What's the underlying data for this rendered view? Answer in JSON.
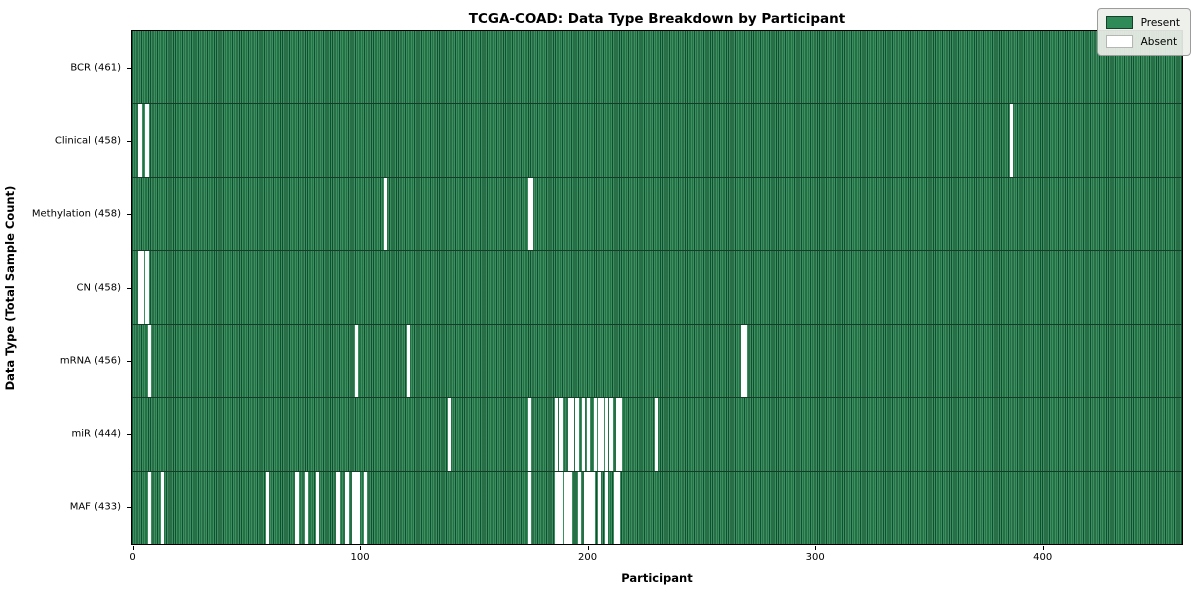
{
  "chart_data": {
    "type": "heatmap",
    "title": "TCGA-COAD: Data Type Breakdown by Participant",
    "xlabel": "Participant",
    "ylabel": "Data Type (Total Sample Count)",
    "x_ticks": [
      0,
      100,
      200,
      300,
      400
    ],
    "x_max": 461,
    "total_participants": 461,
    "grid": false,
    "legend_position": "upper right",
    "legend": [
      {
        "label": "Present",
        "color": "#2e8b57"
      },
      {
        "label": "Absent",
        "color": "#ffffff"
      }
    ],
    "colors": {
      "present": "#2e8b57",
      "present_edge": "#17402a",
      "absent": "#ffffff",
      "row_divider": "#143c26",
      "legend_bg": "#ebefe9"
    },
    "rows": [
      {
        "label": "BCR (461)",
        "data_type": "BCR",
        "count": 461,
        "absent": []
      },
      {
        "label": "Clinical (458)",
        "data_type": "Clinical",
        "count": 458,
        "absent": [
          3,
          6,
          386
        ]
      },
      {
        "label": "Methylation (458)",
        "data_type": "Methylation",
        "count": 458,
        "absent": [
          111,
          174,
          175
        ]
      },
      {
        "label": "CN (458)",
        "data_type": "CN",
        "count": 458,
        "absent": [
          3,
          4,
          6
        ]
      },
      {
        "label": "mRNA (456)",
        "data_type": "mRNA",
        "count": 456,
        "absent": [
          7,
          98,
          121,
          268,
          269
        ]
      },
      {
        "label": "miR (444)",
        "data_type": "miR",
        "count": 444,
        "absent": [
          139,
          174,
          186,
          188,
          192,
          193,
          195,
          198,
          200,
          203,
          205,
          206,
          208,
          210,
          213,
          214,
          230
        ]
      },
      {
        "label": "MAF (433)",
        "data_type": "MAF",
        "count": 433,
        "absent": [
          7,
          13,
          59,
          72,
          76,
          81,
          90,
          94,
          97,
          98,
          99,
          102,
          174,
          186,
          187,
          188,
          190,
          191,
          192,
          196,
          199,
          200,
          201,
          202,
          205,
          208,
          212,
          213
        ]
      }
    ]
  }
}
